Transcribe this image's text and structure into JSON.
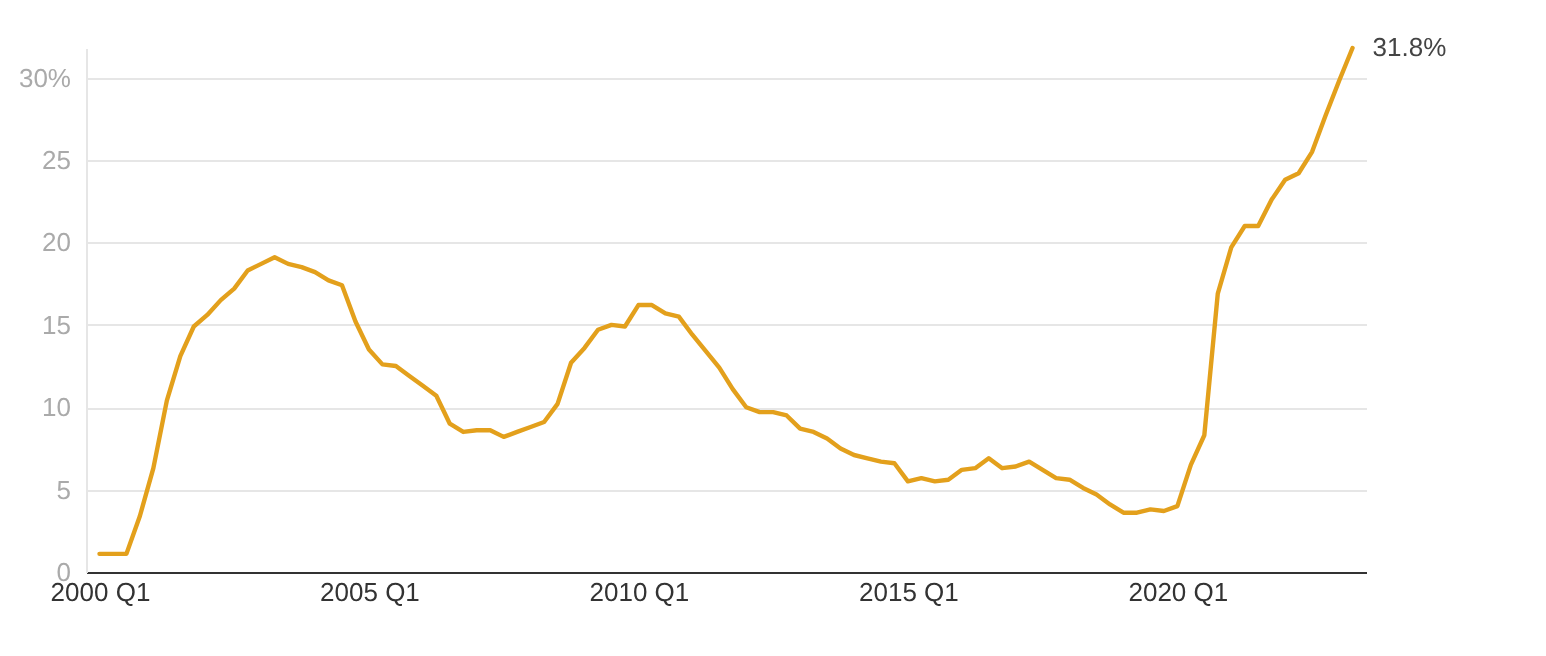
{
  "chart_data": {
    "type": "line",
    "categories": [
      "2000 Q1",
      null,
      null,
      null,
      null,
      null,
      null,
      null,
      null,
      null,
      null,
      null,
      null,
      null,
      null,
      null,
      null,
      null,
      null,
      null,
      "2005 Q1",
      null,
      null,
      null,
      null,
      null,
      null,
      null,
      null,
      null,
      null,
      null,
      null,
      null,
      null,
      null,
      null,
      null,
      null,
      null,
      "2010 Q1",
      null,
      null,
      null,
      null,
      null,
      null,
      null,
      null,
      null,
      null,
      null,
      null,
      null,
      null,
      null,
      null,
      null,
      null,
      null,
      "2015 Q1",
      null,
      null,
      null,
      null,
      null,
      null,
      null,
      null,
      null,
      null,
      null,
      null,
      null,
      null,
      null,
      null,
      null,
      null,
      null,
      "2020 Q1",
      null,
      null,
      null,
      null,
      null,
      null,
      null,
      null,
      null,
      null,
      null,
      null,
      null
    ],
    "series": [
      {
        "color": "#e3a01c",
        "values": [
          1.1,
          1.1,
          1.1,
          3.4,
          6.3,
          10.4,
          13.1,
          14.9,
          15.6,
          16.5,
          17.2,
          18.3,
          18.7,
          19.1,
          18.7,
          18.5,
          18.2,
          17.7,
          17.4,
          15.2,
          13.5,
          12.6,
          12.5,
          11.9,
          11.3,
          10.7,
          9.0,
          8.5,
          8.6,
          8.6,
          8.2,
          8.5,
          8.8,
          9.1,
          10.2,
          12.7,
          13.6,
          14.7,
          15.0,
          14.9,
          16.2,
          16.2,
          15.7,
          15.5,
          14.4,
          13.4,
          12.4,
          11.1,
          10.0,
          9.7,
          9.7,
          9.5,
          8.7,
          8.5,
          8.1,
          7.5,
          7.1,
          6.9,
          6.7,
          6.6,
          5.5,
          5.7,
          5.5,
          5.6,
          6.2,
          6.3,
          6.9,
          6.3,
          6.4,
          6.7,
          6.2,
          5.7,
          5.6,
          5.1,
          4.7,
          4.1,
          3.6,
          3.6,
          3.8,
          3.7,
          4.0,
          6.5,
          8.3,
          16.9,
          19.7,
          21.0,
          21.0,
          22.6,
          23.8,
          24.2,
          25.5,
          27.7,
          29.8,
          31.8
        ]
      }
    ],
    "ylim": [
      0,
      31.8
    ],
    "yticks": [
      0,
      5,
      10,
      15,
      20,
      25,
      {
        "value": 30,
        "label": "30%"
      }
    ],
    "grid": "y",
    "annotations": [
      "31.8%"
    ]
  }
}
